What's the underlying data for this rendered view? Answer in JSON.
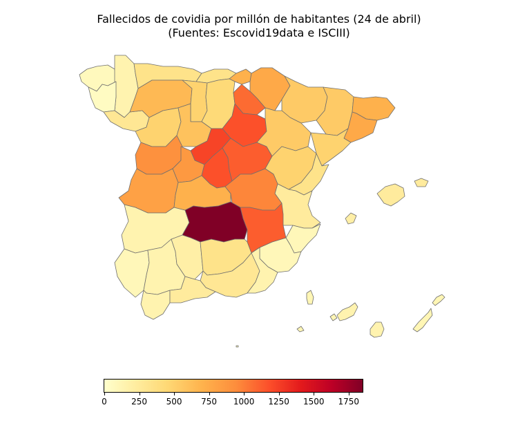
{
  "title_lines": [
    "Fallecidos de covidia por millón de habitantes (24 de abril)",
    "(Fuentes: Escovid19data e ISCIII)"
  ],
  "colorbar": {
    "min": 0,
    "max": 1850,
    "colors": [
      "#ffffcc",
      "#ffeda0",
      "#fed976",
      "#feb24c",
      "#fd8d3c",
      "#fc4e2a",
      "#e31a1c",
      "#bd0026",
      "#800026"
    ],
    "ticks": [
      {
        "value": 0,
        "label": "0"
      },
      {
        "value": 250,
        "label": "250"
      },
      {
        "value": 500,
        "label": "500"
      },
      {
        "value": 750,
        "label": "750"
      },
      {
        "value": 1000,
        "label": "1000"
      },
      {
        "value": 1250,
        "label": "1250"
      },
      {
        "value": 1500,
        "label": "1500"
      },
      {
        "value": 1750,
        "label": "1750"
      }
    ]
  },
  "map": {
    "border_color": "#6f6f6f",
    "land_color": "#fff7bc",
    "regions": [
      {
        "id": "galicia-a-coruna",
        "value": 80
      },
      {
        "id": "galicia-lugo",
        "value": 150
      },
      {
        "id": "galicia-pontevedra",
        "value": 50
      },
      {
        "id": "galicia-ourense",
        "value": 300
      },
      {
        "id": "asturias",
        "value": 350
      },
      {
        "id": "cantabria",
        "value": 350
      },
      {
        "id": "pais-vasco",
        "value": 700
      },
      {
        "id": "navarra",
        "value": 750
      },
      {
        "id": "leon",
        "value": 650
      },
      {
        "id": "palencia",
        "value": 500
      },
      {
        "id": "burgos",
        "value": 450
      },
      {
        "id": "la-rioja",
        "value": 1050
      },
      {
        "id": "soria",
        "value": 1150
      },
      {
        "id": "zamora",
        "value": 500
      },
      {
        "id": "valladolid",
        "value": 600
      },
      {
        "id": "segovia",
        "value": 1200
      },
      {
        "id": "salamanca",
        "value": 900
      },
      {
        "id": "avila",
        "value": 850
      },
      {
        "id": "madrid",
        "value": 1150
      },
      {
        "id": "guadalajara",
        "value": 1100
      },
      {
        "id": "huesca",
        "value": 550
      },
      {
        "id": "zaragoza",
        "value": 550
      },
      {
        "id": "teruel",
        "value": 500
      },
      {
        "id": "lleida",
        "value": 550
      },
      {
        "id": "girona",
        "value": 700
      },
      {
        "id": "barcelona",
        "value": 750
      },
      {
        "id": "tarragona",
        "value": 500
      },
      {
        "id": "castellon",
        "value": 350
      },
      {
        "id": "valencia",
        "value": 250
      },
      {
        "id": "alicante",
        "value": 100
      },
      {
        "id": "murcia",
        "value": 100
      },
      {
        "id": "caceres",
        "value": 800
      },
      {
        "id": "badajoz",
        "value": 150
      },
      {
        "id": "toledo",
        "value": 700
      },
      {
        "id": "cuenca",
        "value": 950
      },
      {
        "id": "ciudad-real",
        "value": 1850
      },
      {
        "id": "albacete",
        "value": 1100
      },
      {
        "id": "huelva",
        "value": 100
      },
      {
        "id": "sevilla",
        "value": 150
      },
      {
        "id": "cordoba",
        "value": 200
      },
      {
        "id": "jaen",
        "value": 350
      },
      {
        "id": "granada",
        "value": 300
      },
      {
        "id": "almeria",
        "value": 150
      },
      {
        "id": "cadiz",
        "value": 150
      },
      {
        "id": "malaga",
        "value": 250
      },
      {
        "id": "mallorca",
        "value": 250
      },
      {
        "id": "menorca",
        "value": 250
      },
      {
        "id": "ibiza",
        "value": 200
      },
      {
        "id": "canarias-tenerife",
        "value": 150
      },
      {
        "id": "canarias-gran-canaria",
        "value": 150
      },
      {
        "id": "canarias-lanzarote",
        "value": 120
      },
      {
        "id": "canarias-fuerteventura",
        "value": 120
      },
      {
        "id": "canarias-la-palma",
        "value": 120
      },
      {
        "id": "canarias-la-gomera",
        "value": 120
      },
      {
        "id": "canarias-hierro",
        "value": 120
      }
    ]
  }
}
